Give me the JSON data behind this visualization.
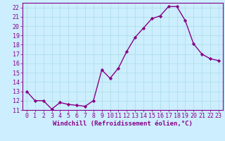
{
  "x": [
    0,
    1,
    2,
    3,
    4,
    5,
    6,
    7,
    8,
    9,
    10,
    11,
    12,
    13,
    14,
    15,
    16,
    17,
    18,
    19,
    20,
    21,
    22,
    23
  ],
  "y": [
    13,
    12,
    12,
    11.1,
    11.8,
    11.6,
    11.5,
    11.4,
    12,
    15.3,
    14.4,
    15.5,
    17.3,
    18.8,
    19.8,
    20.8,
    21.1,
    22.1,
    22.1,
    20.6,
    18.1,
    17.0,
    16.5,
    16.3
  ],
  "line_color": "#880088",
  "marker": "D",
  "marker_size": 2.2,
  "bg_color": "#cceeff",
  "grid_color": "#aadddd",
  "xlabel": "Windchill (Refroidissement éolien,°C)",
  "xlim": [
    -0.5,
    23.5
  ],
  "ylim": [
    11,
    22.5
  ],
  "yticks": [
    11,
    12,
    13,
    14,
    15,
    16,
    17,
    18,
    19,
    20,
    21,
    22
  ],
  "xticks": [
    0,
    1,
    2,
    3,
    4,
    5,
    6,
    7,
    8,
    9,
    10,
    11,
    12,
    13,
    14,
    15,
    16,
    17,
    18,
    19,
    20,
    21,
    22,
    23
  ],
  "xlabel_fontsize": 6.5,
  "tick_fontsize": 6.0,
  "line_width": 1.0
}
